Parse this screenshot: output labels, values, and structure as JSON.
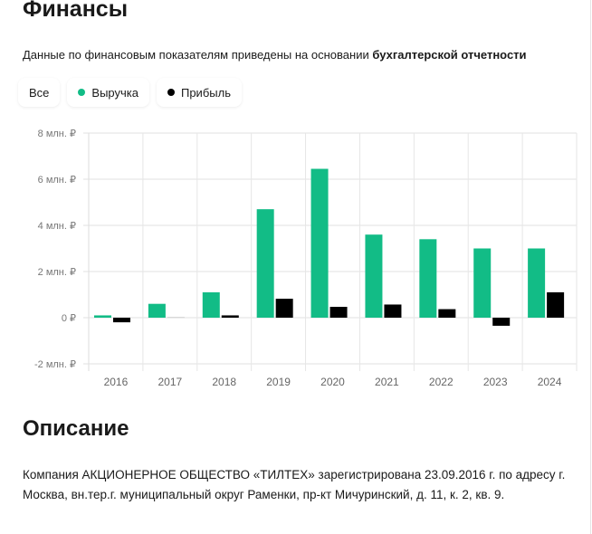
{
  "title": "Финансы",
  "note": {
    "text": "Данные по финансовым показателям приведены на основании ",
    "link": "бухгалтерской отчетности"
  },
  "legend": {
    "all": "Все",
    "revenue": "Выручка",
    "profit": "Прибыль"
  },
  "colors": {
    "revenue": "#12bc86",
    "profit": "#000000"
  },
  "chart_data": {
    "type": "bar",
    "categories": [
      "2016",
      "2017",
      "2018",
      "2019",
      "2020",
      "2021",
      "2022",
      "2023",
      "2024"
    ],
    "series": [
      {
        "name": "Выручка",
        "values": [
          0.1,
          0.6,
          1.1,
          4.7,
          6.45,
          3.6,
          3.4,
          3.0,
          3.0
        ]
      },
      {
        "name": "Прибыль",
        "values": [
          -0.2,
          0.03,
          0.1,
          0.82,
          0.47,
          0.57,
          0.37,
          -0.35,
          1.1
        ]
      }
    ],
    "yticks": [
      {
        "v": 8,
        "label": "8 млн. ₽"
      },
      {
        "v": 6,
        "label": "6 млн. ₽"
      },
      {
        "v": 4,
        "label": "4 млн. ₽"
      },
      {
        "v": 2,
        "label": "2 млн. ₽"
      },
      {
        "v": 0,
        "label": "0 ₽"
      },
      {
        "v": -2,
        "label": "-2 млн. ₽"
      }
    ],
    "ylim": [
      -2,
      8
    ],
    "ylabel": "млн. ₽",
    "grid": true,
    "legend": "top-left"
  },
  "description": {
    "title": "Описание",
    "text": "Компания АКЦИОНЕРНОЕ ОБЩЕСТВО «ТИЛТЕХ» зарегистрирована 23.09.2016 г. по адресу г. Москва, вн.тер.г. муниципальный округ Раменки, пр-кт Мичуринский, д. 11, к. 2, кв. 9."
  }
}
